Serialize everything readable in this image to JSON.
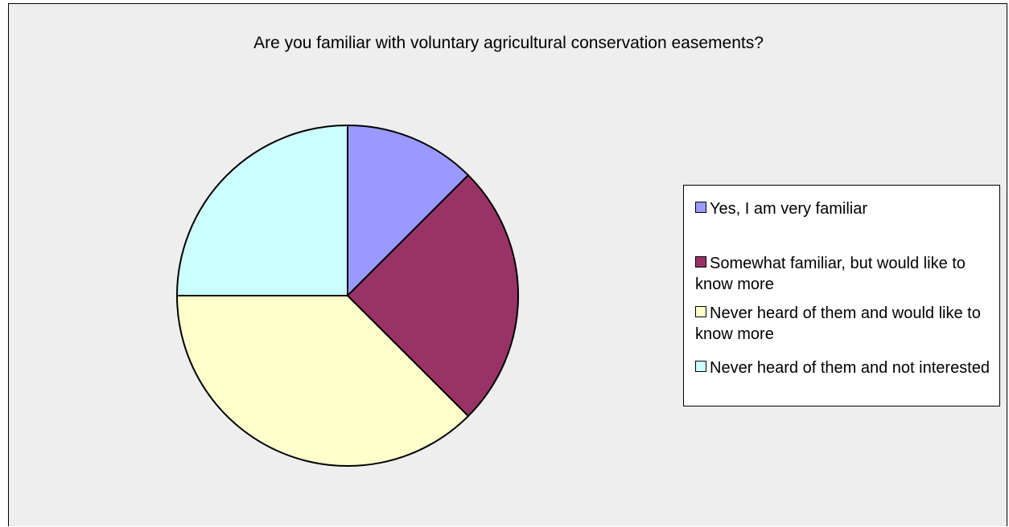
{
  "chart_data": {
    "type": "pie",
    "title": "Are you familiar with voluntary agricultural conservation easements?",
    "categories": [
      "Yes, I am very familiar",
      "Somewhat familiar, but would like to know more",
      "Never heard of them and would like to know more",
      "Never heard of them and not interested"
    ],
    "values": [
      12.5,
      25,
      37.5,
      25
    ],
    "colors": [
      "#9999ff",
      "#993366",
      "#ffffcc",
      "#ccffff"
    ],
    "legend_position": "right",
    "start_angle": "12 o'clock, clockwise"
  }
}
